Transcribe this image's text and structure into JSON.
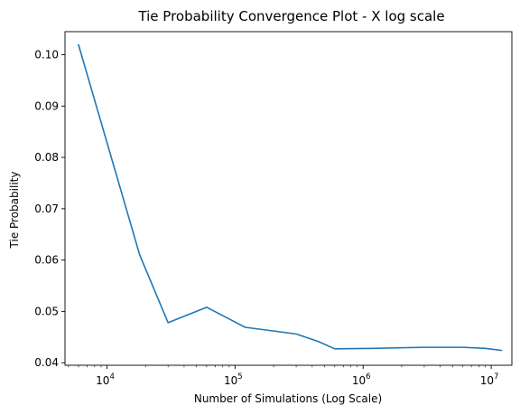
{
  "chart_data": {
    "type": "line",
    "title": "Tie Probability Convergence Plot - X log scale",
    "xlabel": "Number of Simulations (Log Scale)",
    "ylabel": "Tie Probability",
    "xscale": "log",
    "xlim": [
      4700,
      14500000
    ],
    "ylim": [
      0.0395,
      0.1045
    ],
    "grid": false,
    "legend": "none",
    "x_ticks": [
      {
        "value": 10000,
        "base": "10",
        "exp": "4"
      },
      {
        "value": 100000,
        "base": "10",
        "exp": "5"
      },
      {
        "value": 1000000,
        "base": "10",
        "exp": "6"
      },
      {
        "value": 10000000,
        "base": "10",
        "exp": "7"
      }
    ],
    "y_ticks": [
      {
        "value": 0.04,
        "label": "0.04"
      },
      {
        "value": 0.05,
        "label": "0.05"
      },
      {
        "value": 0.06,
        "label": "0.06"
      },
      {
        "value": 0.07,
        "label": "0.07"
      },
      {
        "value": 0.08,
        "label": "0.08"
      },
      {
        "value": 0.09,
        "label": "0.09"
      },
      {
        "value": 0.1,
        "label": "0.10"
      }
    ],
    "series": [
      {
        "color": "#1f77b4",
        "x": [
          6000,
          18000,
          30000,
          60000,
          120000,
          300000,
          450000,
          600000,
          1200000,
          3000000,
          6000000,
          9000000,
          12000000
        ],
        "y": [
          0.1019,
          0.061,
          0.0478,
          0.0508,
          0.0469,
          0.0456,
          0.0441,
          0.0427,
          0.0428,
          0.043,
          0.043,
          0.0428,
          0.0424
        ]
      }
    ]
  }
}
